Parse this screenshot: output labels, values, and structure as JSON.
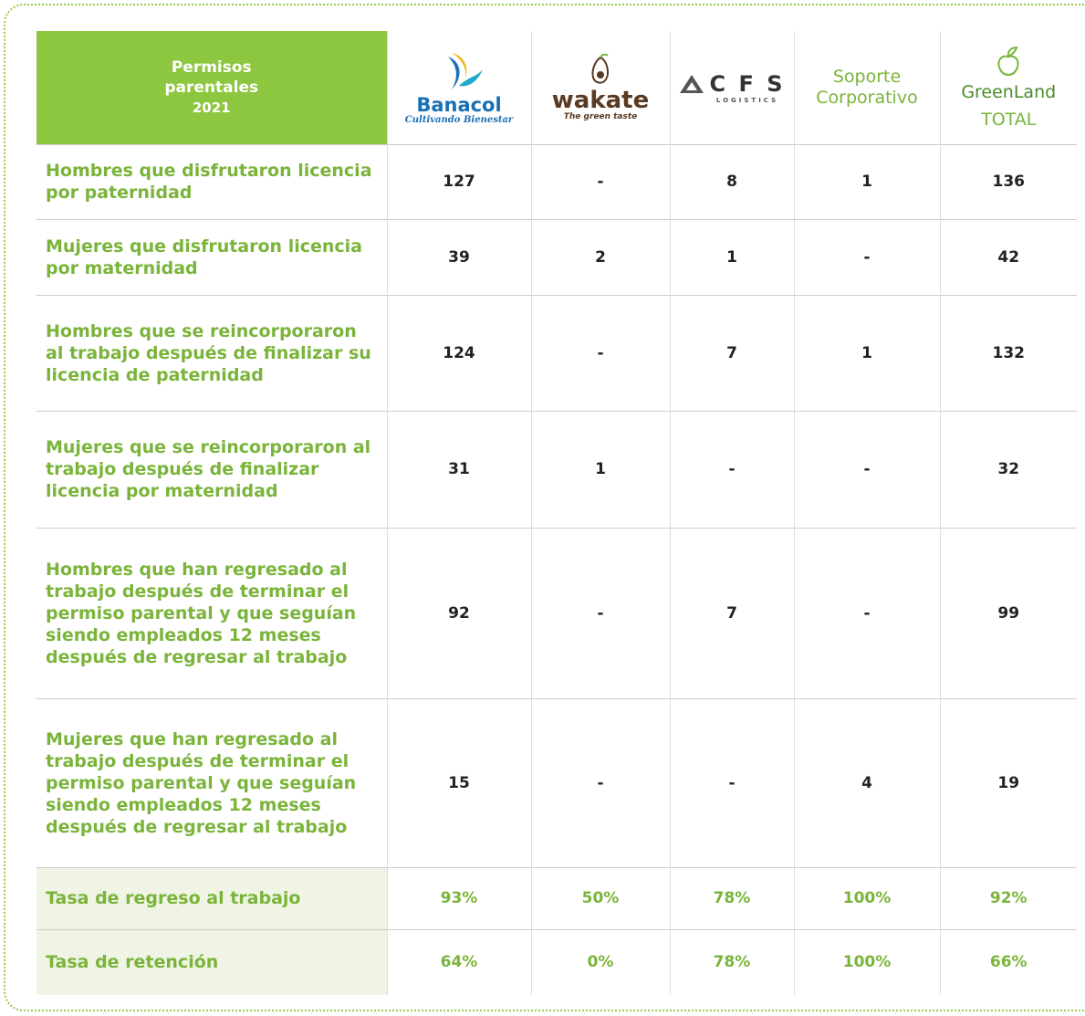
{
  "header": {
    "title": "Permisos parentales",
    "year": "2021",
    "columns": [
      {
        "name": "Banacol",
        "tagline": "Cultivando Bienestar"
      },
      {
        "name": "wakate",
        "tagline": "The green taste"
      },
      {
        "name": "C F S",
        "tagline": "LOGISTICS"
      },
      {
        "name": "Soporte Corporativo"
      },
      {
        "name": "GreenLand",
        "tagline": "TOTAL"
      }
    ]
  },
  "table": {
    "rows": [
      {
        "label": "Hombres que disfrutaron licencia por paternidad",
        "values": [
          "127",
          "-",
          "8",
          "1",
          "136"
        ]
      },
      {
        "label": "Mujeres que disfrutaron licencia por maternidad",
        "values": [
          "39",
          "2",
          "1",
          "-",
          "42"
        ]
      },
      {
        "label": "Hombres que se reincorporaron al trabajo después de finalizar su licencia de paternidad",
        "values": [
          "124",
          "-",
          "7",
          "1",
          "132"
        ]
      },
      {
        "label": "Mujeres que se reincorporaron al trabajo después de finalizar licencia por maternidad",
        "values": [
          "31",
          "1",
          "-",
          "-",
          "32"
        ]
      },
      {
        "label": "Hombres que han regresado al trabajo después de terminar el permiso parental y que seguían siendo empleados 12 meses después de regresar al trabajo",
        "values": [
          "92",
          "-",
          "7",
          "-",
          "99"
        ]
      },
      {
        "label": "Mujeres que han regresado al trabajo después de terminar el permiso parental y que seguían siendo empleados 12 meses después de regresar al trabajo",
        "values": [
          "15",
          "-",
          "-",
          "4",
          "19"
        ]
      },
      {
        "label": "Tasa de regreso al trabajo",
        "values": [
          "93%",
          "50%",
          "78%",
          "100%",
          "92%"
        ]
      },
      {
        "label": "Tasa de retención",
        "values": [
          "64%",
          "0%",
          "78%",
          "100%",
          "66%"
        ]
      }
    ]
  }
}
